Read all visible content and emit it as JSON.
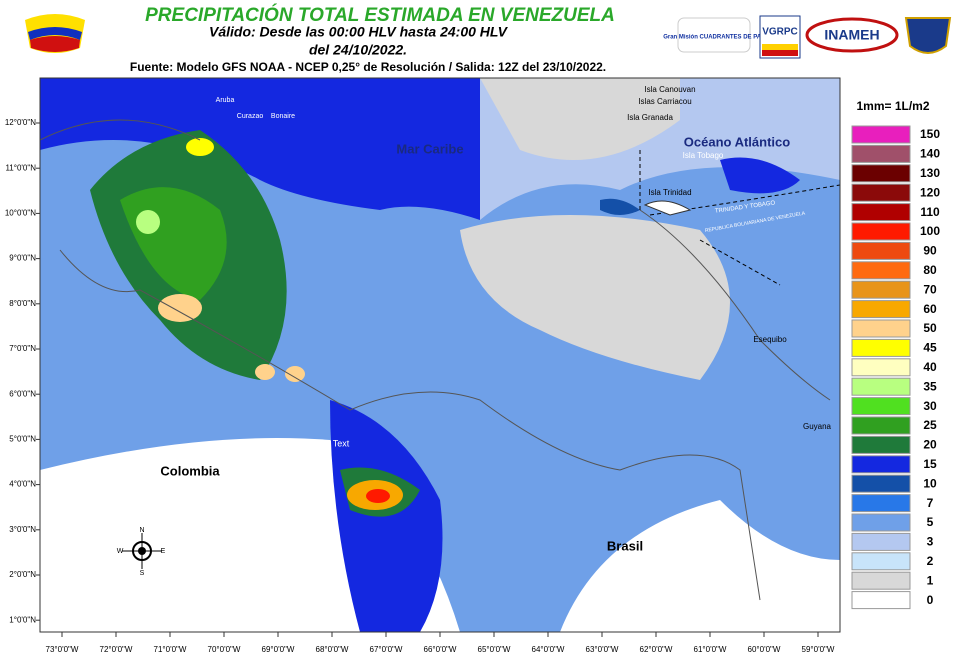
{
  "header": {
    "title": "PRECIPITACIÓN TOTAL ESTIMADA EN VENEZUELA",
    "valid_line": "Válido: Desde las 00:00 HLV hasta 24:00 HLV",
    "date_line": "del 24/10/2022.",
    "source": "Fuente: Modelo GFS NOAA - NCEP 0,25° de Resolución / Salida: 12Z del 23/10/2022."
  },
  "logos": [
    "Gran Misión CUADRANTES DE PAZ",
    "VGRPC",
    "INAMEH"
  ],
  "map": {
    "labels": [
      "Mar Caribe",
      "Océano Atlántico",
      "Colombia",
      "Brasil",
      "Guyana",
      "Isla Canouvan",
      "Islas Carriacou",
      "Isla Granada",
      "Isla Tobago",
      "Isla Trinidad",
      "Esequibo",
      "Text",
      "Aruba",
      "Curazao",
      "Bonaire",
      "TRINIDAD Y TOBAGO",
      "REPUBLICA BOLIVARIANA DE VENEZUELA"
    ],
    "lat_ticks": [
      "12°0'0\"N",
      "11°0'0\"N",
      "10°0'0\"N",
      "9°0'0\"N",
      "8°0'0\"N",
      "7°0'0\"N",
      "6°0'0\"N",
      "5°0'0\"N",
      "4°0'0\"N",
      "3°0'0\"N",
      "2°0'0\"N",
      "1°0'0\"N"
    ],
    "lon_ticks": [
      "73°0'0\"W",
      "72°0'0\"W",
      "71°0'0\"W",
      "70°0'0\"W",
      "69°0'0\"W",
      "68°0'0\"W",
      "67°0'0\"W",
      "66°0'0\"W",
      "65°0'0\"W",
      "64°0'0\"W",
      "63°0'0\"W",
      "62°0'0\"W",
      "61°0'0\"W",
      "60°0'0\"W",
      "59°0'0\"W"
    ],
    "compass": [
      "N",
      "E",
      "S",
      "W"
    ]
  },
  "legend": {
    "title": "1mm= 1L/m2",
    "items": [
      {
        "value": 150,
        "color": "#e81fbd"
      },
      {
        "value": 140,
        "color": "#a0506a"
      },
      {
        "value": 130,
        "color": "#6b0000"
      },
      {
        "value": 120,
        "color": "#8b0a0a"
      },
      {
        "value": 110,
        "color": "#b00000"
      },
      {
        "value": 100,
        "color": "#ff1a00"
      },
      {
        "value": 90,
        "color": "#ee4a10"
      },
      {
        "value": 80,
        "color": "#ff6a10"
      },
      {
        "value": 70,
        "color": "#e8941a"
      },
      {
        "value": 60,
        "color": "#f8a800"
      },
      {
        "value": 50,
        "color": "#ffd28c"
      },
      {
        "value": 45,
        "color": "#ffff00"
      },
      {
        "value": 40,
        "color": "#ffffc0"
      },
      {
        "value": 35,
        "color": "#b8ff80"
      },
      {
        "value": 30,
        "color": "#50e020"
      },
      {
        "value": 25,
        "color": "#30a020"
      },
      {
        "value": 20,
        "color": "#1f7a3a"
      },
      {
        "value": 15,
        "color": "#1428e0"
      },
      {
        "value": 10,
        "color": "#1450a8"
      },
      {
        "value": 7,
        "color": "#2878e8"
      },
      {
        "value": 5,
        "color": "#6fa0e8"
      },
      {
        "value": 3,
        "color": "#b4c8f0"
      },
      {
        "value": 2,
        "color": "#c8e4fa"
      },
      {
        "value": 1,
        "color": "#d8d8d8"
      },
      {
        "value": 0,
        "color": "#ffffff"
      }
    ]
  }
}
